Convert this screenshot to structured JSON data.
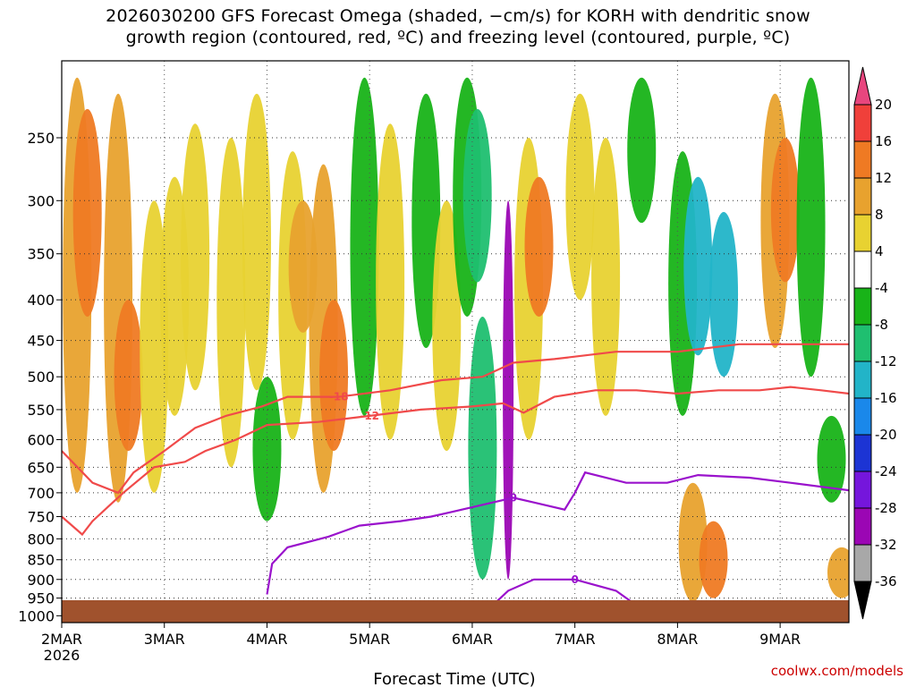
{
  "title": {
    "line1": "2026030200 GFS Forecast Omega (shaded, −cm/s) for KORH with dendritic snow",
    "line2": "growth region (contoured, red, ºC) and freezing level (contoured, purple, ºC)"
  },
  "chart_data": {
    "type": "heatmap",
    "title": "2026030200 GFS Forecast Omega (shaded, −cm/s) for KORH with dendritic snow growth region (contoured, red, ºC) and freezing level (contoured, purple, ºC)",
    "xlabel": "Forecast Time (UTC)",
    "ylabel": "",
    "x_ticks": [
      "2MAR",
      "3MAR",
      "4MAR",
      "5MAR",
      "6MAR",
      "7MAR",
      "8MAR",
      "9MAR"
    ],
    "x_year": "2026",
    "x_tick_days": [
      0,
      1,
      2,
      3,
      4,
      5,
      6,
      7
    ],
    "xlim_days": [
      0,
      7.67
    ],
    "y_ticks": [
      250,
      300,
      350,
      400,
      450,
      500,
      550,
      600,
      650,
      700,
      750,
      800,
      850,
      900,
      950,
      1000
    ],
    "ylim_hpa": [
      1020,
      200
    ],
    "colorbar": {
      "ticks": [
        20,
        16,
        12,
        8,
        4,
        -4,
        -8,
        -12,
        -16,
        -20,
        -24,
        -28,
        -32,
        -36
      ],
      "colors": [
        "#e8467e",
        "#f0403a",
        "#ef7a23",
        "#e8a22e",
        "#e8d231",
        "#ffffff",
        "#18b318",
        "#1fbf70",
        "#22b4c8",
        "#1a88ea",
        "#1c34d4",
        "#7516dc",
        "#9b06b4",
        "#a8a8a8",
        "#000000"
      ]
    },
    "omega_regions": [
      {
        "t": 0.15,
        "p1": 210,
        "p2": 700,
        "value": 8
      },
      {
        "t": 0.25,
        "p1": 230,
        "p2": 420,
        "value": 14
      },
      {
        "t": 0.55,
        "p1": 220,
        "p2": 720,
        "value": 8
      },
      {
        "t": 0.65,
        "p1": 400,
        "p2": 620,
        "value": 12
      },
      {
        "t": 0.9,
        "p1": 300,
        "p2": 700,
        "value": 6
      },
      {
        "t": 1.1,
        "p1": 280,
        "p2": 560,
        "value": 5
      },
      {
        "t": 1.3,
        "p1": 240,
        "p2": 520,
        "value": 5
      },
      {
        "t": 1.65,
        "p1": 250,
        "p2": 650,
        "value": 6
      },
      {
        "t": 1.9,
        "p1": 220,
        "p2": 520,
        "value": 5
      },
      {
        "t": 2.0,
        "p1": 500,
        "p2": 760,
        "value": -8
      },
      {
        "t": 2.25,
        "p1": 260,
        "p2": 600,
        "value": 6
      },
      {
        "t": 2.35,
        "p1": 300,
        "p2": 440,
        "value": 10
      },
      {
        "t": 2.55,
        "p1": 270,
        "p2": 700,
        "value": 8
      },
      {
        "t": 2.65,
        "p1": 400,
        "p2": 620,
        "value": 12
      },
      {
        "t": 2.95,
        "p1": 210,
        "p2": 560,
        "value": -8
      },
      {
        "t": 3.2,
        "p1": 240,
        "p2": 600,
        "value": 5
      },
      {
        "t": 3.55,
        "p1": 220,
        "p2": 460,
        "value": -8
      },
      {
        "t": 3.75,
        "p1": 300,
        "p2": 620,
        "value": 6
      },
      {
        "t": 3.95,
        "p1": 210,
        "p2": 420,
        "value": -8
      },
      {
        "t": 4.05,
        "p1": 230,
        "p2": 380,
        "value": -12
      },
      {
        "t": 4.1,
        "p1": 420,
        "p2": 900,
        "value": -10
      },
      {
        "t": 4.35,
        "p1": 300,
        "p2": 900,
        "value": -30
      },
      {
        "t": 4.55,
        "p1": 250,
        "p2": 600,
        "value": 6
      },
      {
        "t": 4.65,
        "p1": 280,
        "p2": 420,
        "value": 12
      },
      {
        "t": 5.05,
        "p1": 220,
        "p2": 400,
        "value": 5
      },
      {
        "t": 5.3,
        "p1": 250,
        "p2": 560,
        "value": 4
      },
      {
        "t": 5.65,
        "p1": 210,
        "p2": 320,
        "value": -8
      },
      {
        "t": 6.05,
        "p1": 260,
        "p2": 560,
        "value": -8
      },
      {
        "t": 6.2,
        "p1": 280,
        "p2": 470,
        "value": -14
      },
      {
        "t": 6.45,
        "p1": 310,
        "p2": 500,
        "value": -14
      },
      {
        "t": 6.15,
        "p1": 680,
        "p2": 960,
        "value": 8
      },
      {
        "t": 6.35,
        "p1": 760,
        "p2": 950,
        "value": 12
      },
      {
        "t": 6.95,
        "p1": 220,
        "p2": 460,
        "value": 8
      },
      {
        "t": 7.05,
        "p1": 250,
        "p2": 380,
        "value": 12
      },
      {
        "t": 7.3,
        "p1": 210,
        "p2": 500,
        "value": -8
      },
      {
        "t": 7.5,
        "p1": 560,
        "p2": 720,
        "value": -8
      },
      {
        "t": 7.6,
        "p1": 820,
        "p2": 950,
        "value": 8
      }
    ],
    "contours": {
      "dendritic_red": [
        {
          "label": "-18",
          "points": [
            [
              0.0,
              620
            ],
            [
              0.3,
              680
            ],
            [
              0.55,
              700
            ],
            [
              0.7,
              660
            ],
            [
              1.0,
              620
            ],
            [
              1.3,
              580
            ],
            [
              1.6,
              560
            ],
            [
              1.95,
              545
            ],
            [
              2.2,
              530
            ],
            [
              2.7,
              530
            ],
            [
              3.2,
              520
            ],
            [
              3.7,
              505
            ],
            [
              4.1,
              500
            ],
            [
              4.4,
              480
            ],
            [
              4.8,
              475
            ],
            [
              5.4,
              465
            ],
            [
              6.0,
              465
            ],
            [
              6.6,
              455
            ],
            [
              7.0,
              455
            ],
            [
              7.67,
              455
            ]
          ]
        },
        {
          "label": "-12",
          "points": [
            [
              0.0,
              750
            ],
            [
              0.2,
              790
            ],
            [
              0.3,
              760
            ],
            [
              0.6,
              700
            ],
            [
              0.9,
              650
            ],
            [
              1.2,
              640
            ],
            [
              1.4,
              620
            ],
            [
              1.7,
              600
            ],
            [
              2.0,
              575
            ],
            [
              2.5,
              570
            ],
            [
              3.0,
              560
            ],
            [
              3.5,
              550
            ],
            [
              4.0,
              545
            ],
            [
              4.3,
              540
            ],
            [
              4.5,
              555
            ],
            [
              4.8,
              530
            ],
            [
              5.2,
              520
            ],
            [
              5.6,
              520
            ],
            [
              6.0,
              525
            ],
            [
              6.4,
              520
            ],
            [
              6.8,
              520
            ],
            [
              7.1,
              515
            ],
            [
              7.4,
              520
            ],
            [
              7.67,
              525
            ]
          ]
        }
      ],
      "freezing_purple": [
        {
          "label": "0",
          "points": [
            [
              2.0,
              940
            ],
            [
              2.05,
              860
            ],
            [
              2.2,
              820
            ],
            [
              2.6,
              795
            ],
            [
              2.9,
              770
            ],
            [
              3.3,
              760
            ],
            [
              3.6,
              750
            ],
            [
              3.8,
              740
            ],
            [
              4.2,
              720
            ],
            [
              4.4,
              710
            ],
            [
              4.6,
              720
            ],
            [
              4.9,
              735
            ],
            [
              5.0,
              700
            ],
            [
              5.1,
              660
            ],
            [
              5.5,
              680
            ],
            [
              5.9,
              680
            ],
            [
              6.2,
              665
            ],
            [
              6.7,
              670
            ],
            [
              7.1,
              680
            ],
            [
              7.67,
              695
            ]
          ]
        },
        {
          "label": "0",
          "points": [
            [
              4.2,
              970
            ],
            [
              4.35,
              930
            ],
            [
              4.6,
              900
            ],
            [
              5.0,
              900
            ],
            [
              5.4,
              930
            ],
            [
              5.55,
              960
            ],
            [
              5.7,
              975
            ]
          ]
        }
      ]
    }
  },
  "credit": "coolwx.com/models"
}
